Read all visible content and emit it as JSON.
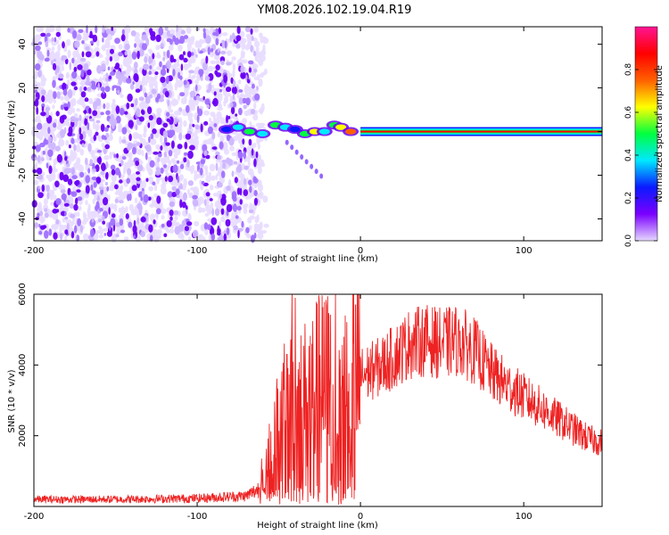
{
  "figure": {
    "title": "YM08.2026.102.19.04.R19"
  },
  "chart_data": [
    {
      "type": "heatmap",
      "xlabel": "Height of straight line (km)",
      "ylabel": "Frequency (Hz)",
      "xlim": [
        -200,
        148
      ],
      "ylim": [
        -50,
        48
      ],
      "xticks": [
        -200,
        -100,
        0,
        100
      ],
      "yticks": [
        -40,
        -20,
        0,
        20,
        40
      ],
      "colorbar": {
        "label": "Normalized spectral amplitude",
        "range": [
          0,
          1
        ],
        "ticks": [
          "0.0",
          "0.2",
          "0.4",
          "0.6",
          "0.8"
        ],
        "colors": [
          "#e6d8ff",
          "#7a00ff",
          "#0a1aff",
          "#00e8ff",
          "#00ff40",
          "#ffff00",
          "#ff6000",
          "#ff0000",
          "#ff1493"
        ]
      },
      "features": {
        "noise_region_x": [
          -200,
          -63
        ],
        "carrier_x": [
          0,
          148
        ],
        "carrier_freq": 0
      }
    },
    {
      "type": "line",
      "xlabel": "Height of straight line (km)",
      "ylabel": "SNR (10 * v/v)",
      "xlim": [
        -200,
        148
      ],
      "ylim": [
        0,
        6000
      ],
      "xticks": [
        -200,
        -100,
        0,
        100
      ],
      "yticks": [
        2000,
        4000,
        6000
      ],
      "color": "#ee2222",
      "envelope": {
        "x": [
          -200,
          -150,
          -100,
          -70,
          -62,
          -55,
          -45,
          -40,
          -35,
          -30,
          -25,
          -20,
          -15,
          -10,
          0,
          10,
          20,
          30,
          40,
          50,
          60,
          70,
          80,
          90,
          100,
          110,
          120,
          130,
          140,
          148
        ],
        "y": [
          200,
          200,
          230,
          300,
          500,
          1600,
          2600,
          2700,
          2800,
          3000,
          3200,
          3300,
          3400,
          3600,
          3700,
          3900,
          4200,
          4600,
          4700,
          4600,
          4700,
          4400,
          3800,
          3400,
          3100,
          2800,
          2500,
          2200,
          1900,
          1800
        ]
      },
      "spikes": [
        {
          "x": -42,
          "y": 6000
        },
        {
          "x": -40,
          "y": 5900
        },
        {
          "x": -45,
          "y": 4300
        },
        {
          "x": -3,
          "y": 5700
        },
        {
          "x": -10,
          "y": 4800
        },
        {
          "x": 30,
          "y": 5100
        },
        {
          "x": 60,
          "y": 5200
        }
      ]
    }
  ]
}
